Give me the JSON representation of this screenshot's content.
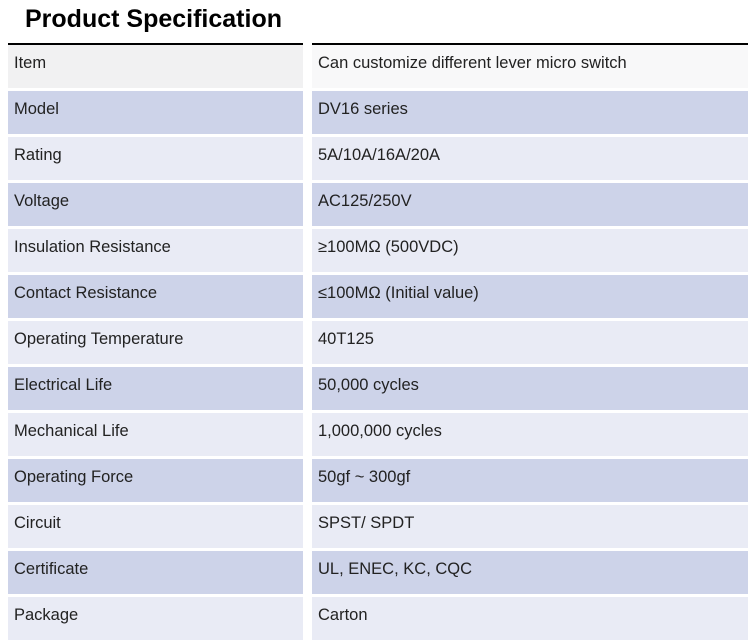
{
  "page_title": "Product Specification",
  "colors": {
    "row_light": "#e9ebf5",
    "row_medium": "#cdd3e9",
    "first_row_label_bg": "#f1f1f2",
    "first_row_value_bg": "#f8f8f9",
    "table_top_border": "#000000",
    "text": "#222222"
  },
  "table": {
    "rows": [
      {
        "label": "Item",
        "value": "Can customize different lever micro switch"
      },
      {
        "label": "Model",
        "value": "DV16 series"
      },
      {
        "label": "Rating",
        "value": "5A/10A/16A/20A"
      },
      {
        "label": "Voltage",
        "value": "AC125/250V"
      },
      {
        "label": "Insulation Resistance",
        "value": "≥100MΩ (500VDC)"
      },
      {
        "label": "Contact Resistance",
        "value": "≤100MΩ (Initial value)"
      },
      {
        "label": "Operating Temperature",
        "value": "40T125"
      },
      {
        "label": "Electrical Life",
        "value": "50,000 cycles"
      },
      {
        "label": "Mechanical Life",
        "value": "1,000,000 cycles"
      },
      {
        "label": "Operating Force",
        "value": "50gf ~ 300gf"
      },
      {
        "label": "Circuit",
        "value": "SPST/ SPDT"
      },
      {
        "label": "Certificate",
        "value": "UL, ENEC, KC, CQC"
      },
      {
        "label": "Package",
        "value": "Carton"
      }
    ]
  }
}
